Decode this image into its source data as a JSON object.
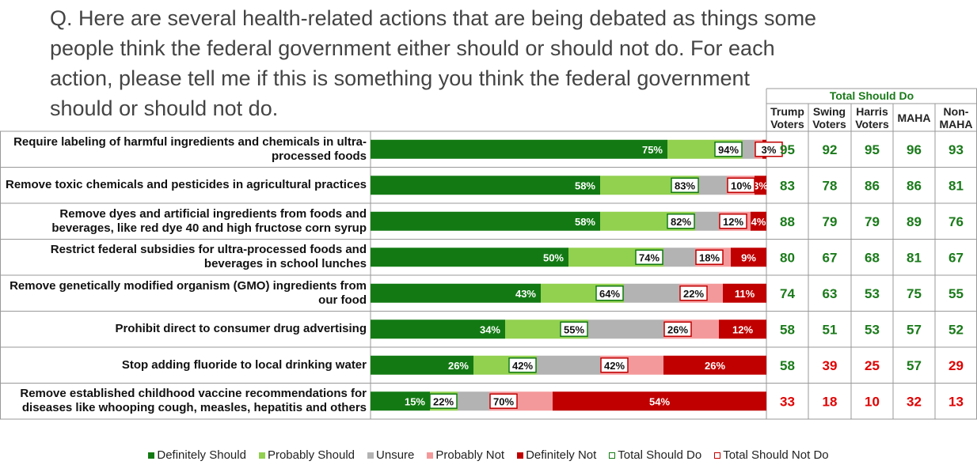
{
  "chart_data": {
    "type": "bar",
    "orientation": "horizontal",
    "stacked": true,
    "title": "Q. Here are several health-related actions that are being debated as things some people think the federal government either should or should not do. For each action, please tell me if this is something you think the federal government should or should not do.",
    "categories": [
      "Require labeling of harmful ingredients and chemicals in ultra-processed foods",
      "Remove toxic chemicals and pesticides in agricultural practices",
      "Remove dyes and artificial ingredients from foods and beverages, like red dye 40 and high fructose corn syrup",
      "Restrict federal subsidies for ultra-processed foods and beverages in school lunches",
      "Remove genetically modified organism (GMO) ingredients from our food",
      "Prohibit direct to consumer drug advertising",
      "Stop adding fluoride to local drinking water",
      "Remove established childhood vaccine recommendations for diseases like whooping cough, measles, hepatitis and others"
    ],
    "xlim": [
      0,
      100
    ],
    "series": [
      {
        "name": "Definitely Should",
        "color": "#137a13",
        "values": [
          75,
          58,
          58,
          50,
          43,
          34,
          26,
          15
        ],
        "value_labels": [
          "75%",
          "58%",
          "58%",
          "50%",
          "43%",
          "34%",
          "26%",
          "15%"
        ]
      },
      {
        "name": "Probably Should",
        "color": "#92d050",
        "values": [
          19,
          25,
          24,
          24,
          21,
          21,
          16,
          7
        ]
      },
      {
        "name": "Unsure",
        "color": "#b3b3b3",
        "values": [
          3,
          7,
          6,
          8,
          14,
          19,
          16,
          8
        ]
      },
      {
        "name": "Probably Not",
        "color": "#f4999b",
        "values": [
          2,
          7,
          8,
          9,
          11,
          14,
          16,
          16
        ]
      },
      {
        "name": "Definitely Not",
        "color": "#c00000",
        "values": [
          1,
          3,
          4,
          9,
          11,
          12,
          26,
          54
        ],
        "value_labels": [
          null,
          "3%",
          "4%",
          "9%",
          "11%",
          "12%",
          "26%",
          "54%"
        ]
      }
    ],
    "totals": [
      {
        "name": "Total Should Do",
        "color": "#137a13",
        "values": [
          94,
          83,
          82,
          74,
          64,
          55,
          42,
          22
        ],
        "value_labels": [
          "94%",
          "83%",
          "82%",
          "74%",
          "64%",
          "55%",
          "42%",
          "22%"
        ]
      },
      {
        "name": "Total Should Not Do",
        "color": "#c00000",
        "values": [
          3,
          10,
          12,
          18,
          22,
          26,
          42,
          70
        ],
        "value_labels": [
          "3%",
          "10%",
          "12%",
          "18%",
          "22%",
          "26%",
          "42%",
          "70%"
        ]
      }
    ],
    "table": {
      "title": "Total Should Do",
      "columns": [
        {
          "name": "Trump Voters",
          "values": [
            95,
            83,
            88,
            80,
            74,
            58,
            58,
            33
          ],
          "colors": [
            "#1a7a1a",
            "#1a7a1a",
            "#1a7a1a",
            "#1a7a1a",
            "#1a7a1a",
            "#1a7a1a",
            "#1a7a1a",
            "#e00000"
          ]
        },
        {
          "name": "Swing Voters",
          "values": [
            92,
            78,
            79,
            67,
            63,
            51,
            39,
            18
          ],
          "colors": [
            "#1a7a1a",
            "#1a7a1a",
            "#1a7a1a",
            "#1a7a1a",
            "#1a7a1a",
            "#1a7a1a",
            "#e00000",
            "#e00000"
          ]
        },
        {
          "name": "Harris Voters",
          "values": [
            95,
            86,
            79,
            68,
            53,
            53,
            25,
            10
          ],
          "colors": [
            "#1a7a1a",
            "#1a7a1a",
            "#1a7a1a",
            "#1a7a1a",
            "#1a7a1a",
            "#1a7a1a",
            "#e00000",
            "#e00000"
          ]
        },
        {
          "name": "MAHA",
          "values": [
            96,
            86,
            89,
            81,
            75,
            57,
            57,
            32
          ],
          "colors": [
            "#1a7a1a",
            "#1a7a1a",
            "#1a7a1a",
            "#1a7a1a",
            "#1a7a1a",
            "#1a7a1a",
            "#1a7a1a",
            "#e00000"
          ]
        },
        {
          "name": "Non-MAHA",
          "values": [
            93,
            81,
            76,
            67,
            55,
            52,
            29,
            13
          ],
          "colors": [
            "#1a7a1a",
            "#1a7a1a",
            "#1a7a1a",
            "#1a7a1a",
            "#1a7a1a",
            "#1a7a1a",
            "#e00000",
            "#e00000"
          ]
        }
      ]
    }
  }
}
